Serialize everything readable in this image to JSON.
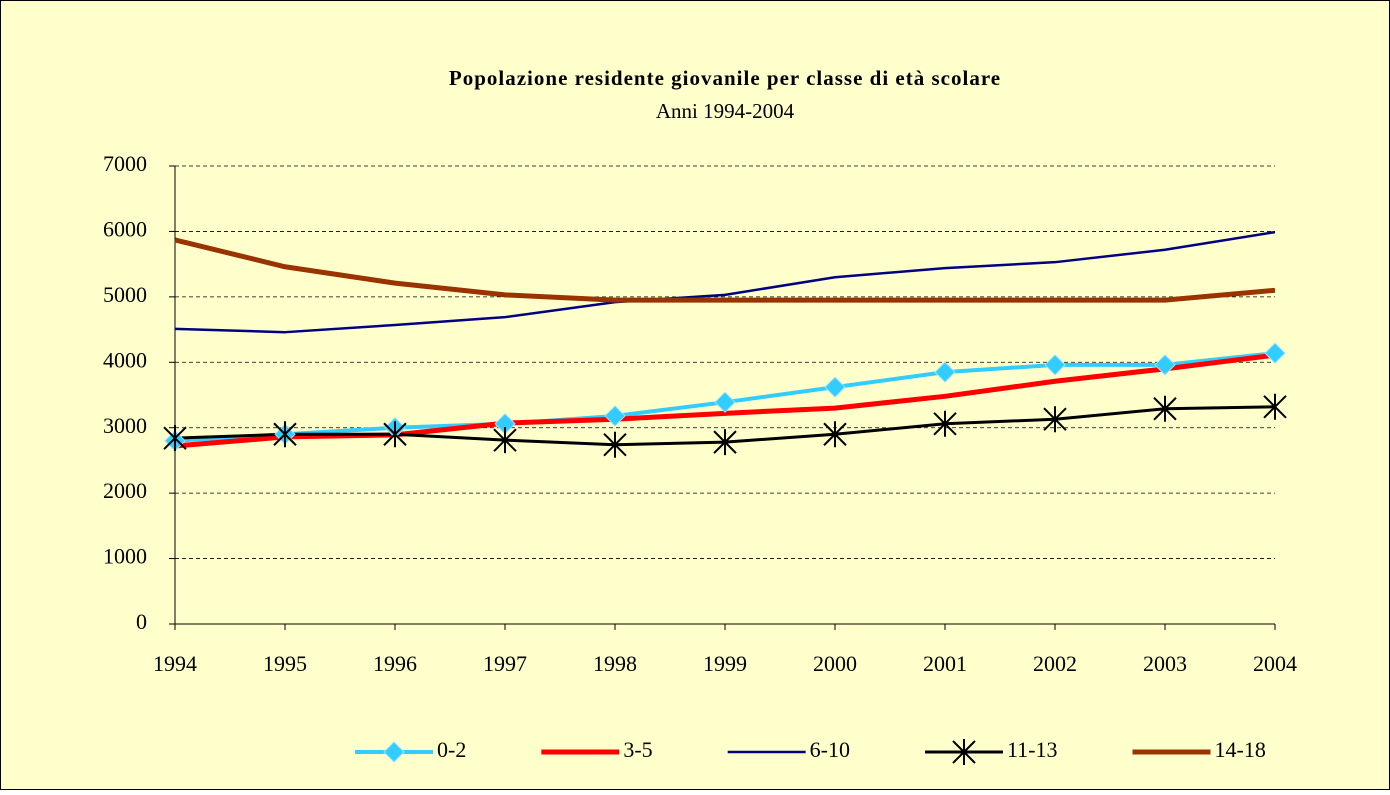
{
  "chart_data": {
    "type": "line",
    "title": "Popolazione  residente giovanile per classe di età scolare",
    "subtitle": "Anni 1994-2004",
    "x": [
      1994,
      1995,
      1996,
      1997,
      1998,
      1999,
      2000,
      2001,
      2002,
      2003,
      2004
    ],
    "xlim": [
      1994,
      2004
    ],
    "xticks": [
      1994,
      1995,
      1996,
      1997,
      1998,
      1999,
      2000,
      2001,
      2002,
      2003,
      2004
    ],
    "ylim": [
      0,
      7000
    ],
    "yticks": [
      0,
      1000,
      2000,
      3000,
      4000,
      5000,
      6000,
      7000
    ],
    "grid": true,
    "legend": "bottom",
    "series": [
      {
        "name": "0-2",
        "color": "#33ccff",
        "marker": "diamond",
        "line_width": 4,
        "values": [
          2800,
          2900,
          3000,
          3060,
          3180,
          3390,
          3620,
          3850,
          3960,
          3960,
          4140
        ]
      },
      {
        "name": "3-5",
        "color": "#ff0000",
        "marker": null,
        "line_width": 5,
        "values": [
          2720,
          2860,
          2890,
          3070,
          3130,
          3220,
          3300,
          3480,
          3710,
          3900,
          4110
        ]
      },
      {
        "name": "6-10",
        "color": "#000080",
        "marker": null,
        "line_width": 2.5,
        "values": [
          4510,
          4460,
          4570,
          4690,
          4920,
          5030,
          5300,
          5440,
          5530,
          5720,
          5990
        ]
      },
      {
        "name": "11-13",
        "color": "#000000",
        "marker": "asterisk",
        "line_width": 3,
        "values": [
          2840,
          2900,
          2900,
          2810,
          2740,
          2780,
          2900,
          3060,
          3130,
          3290,
          3320
        ]
      },
      {
        "name": "14-18",
        "color": "#993300",
        "marker": null,
        "line_width": 5,
        "values": [
          5870,
          5460,
          5210,
          5030,
          4950,
          4950,
          4950,
          4950,
          4950,
          4950,
          5100
        ]
      }
    ]
  }
}
